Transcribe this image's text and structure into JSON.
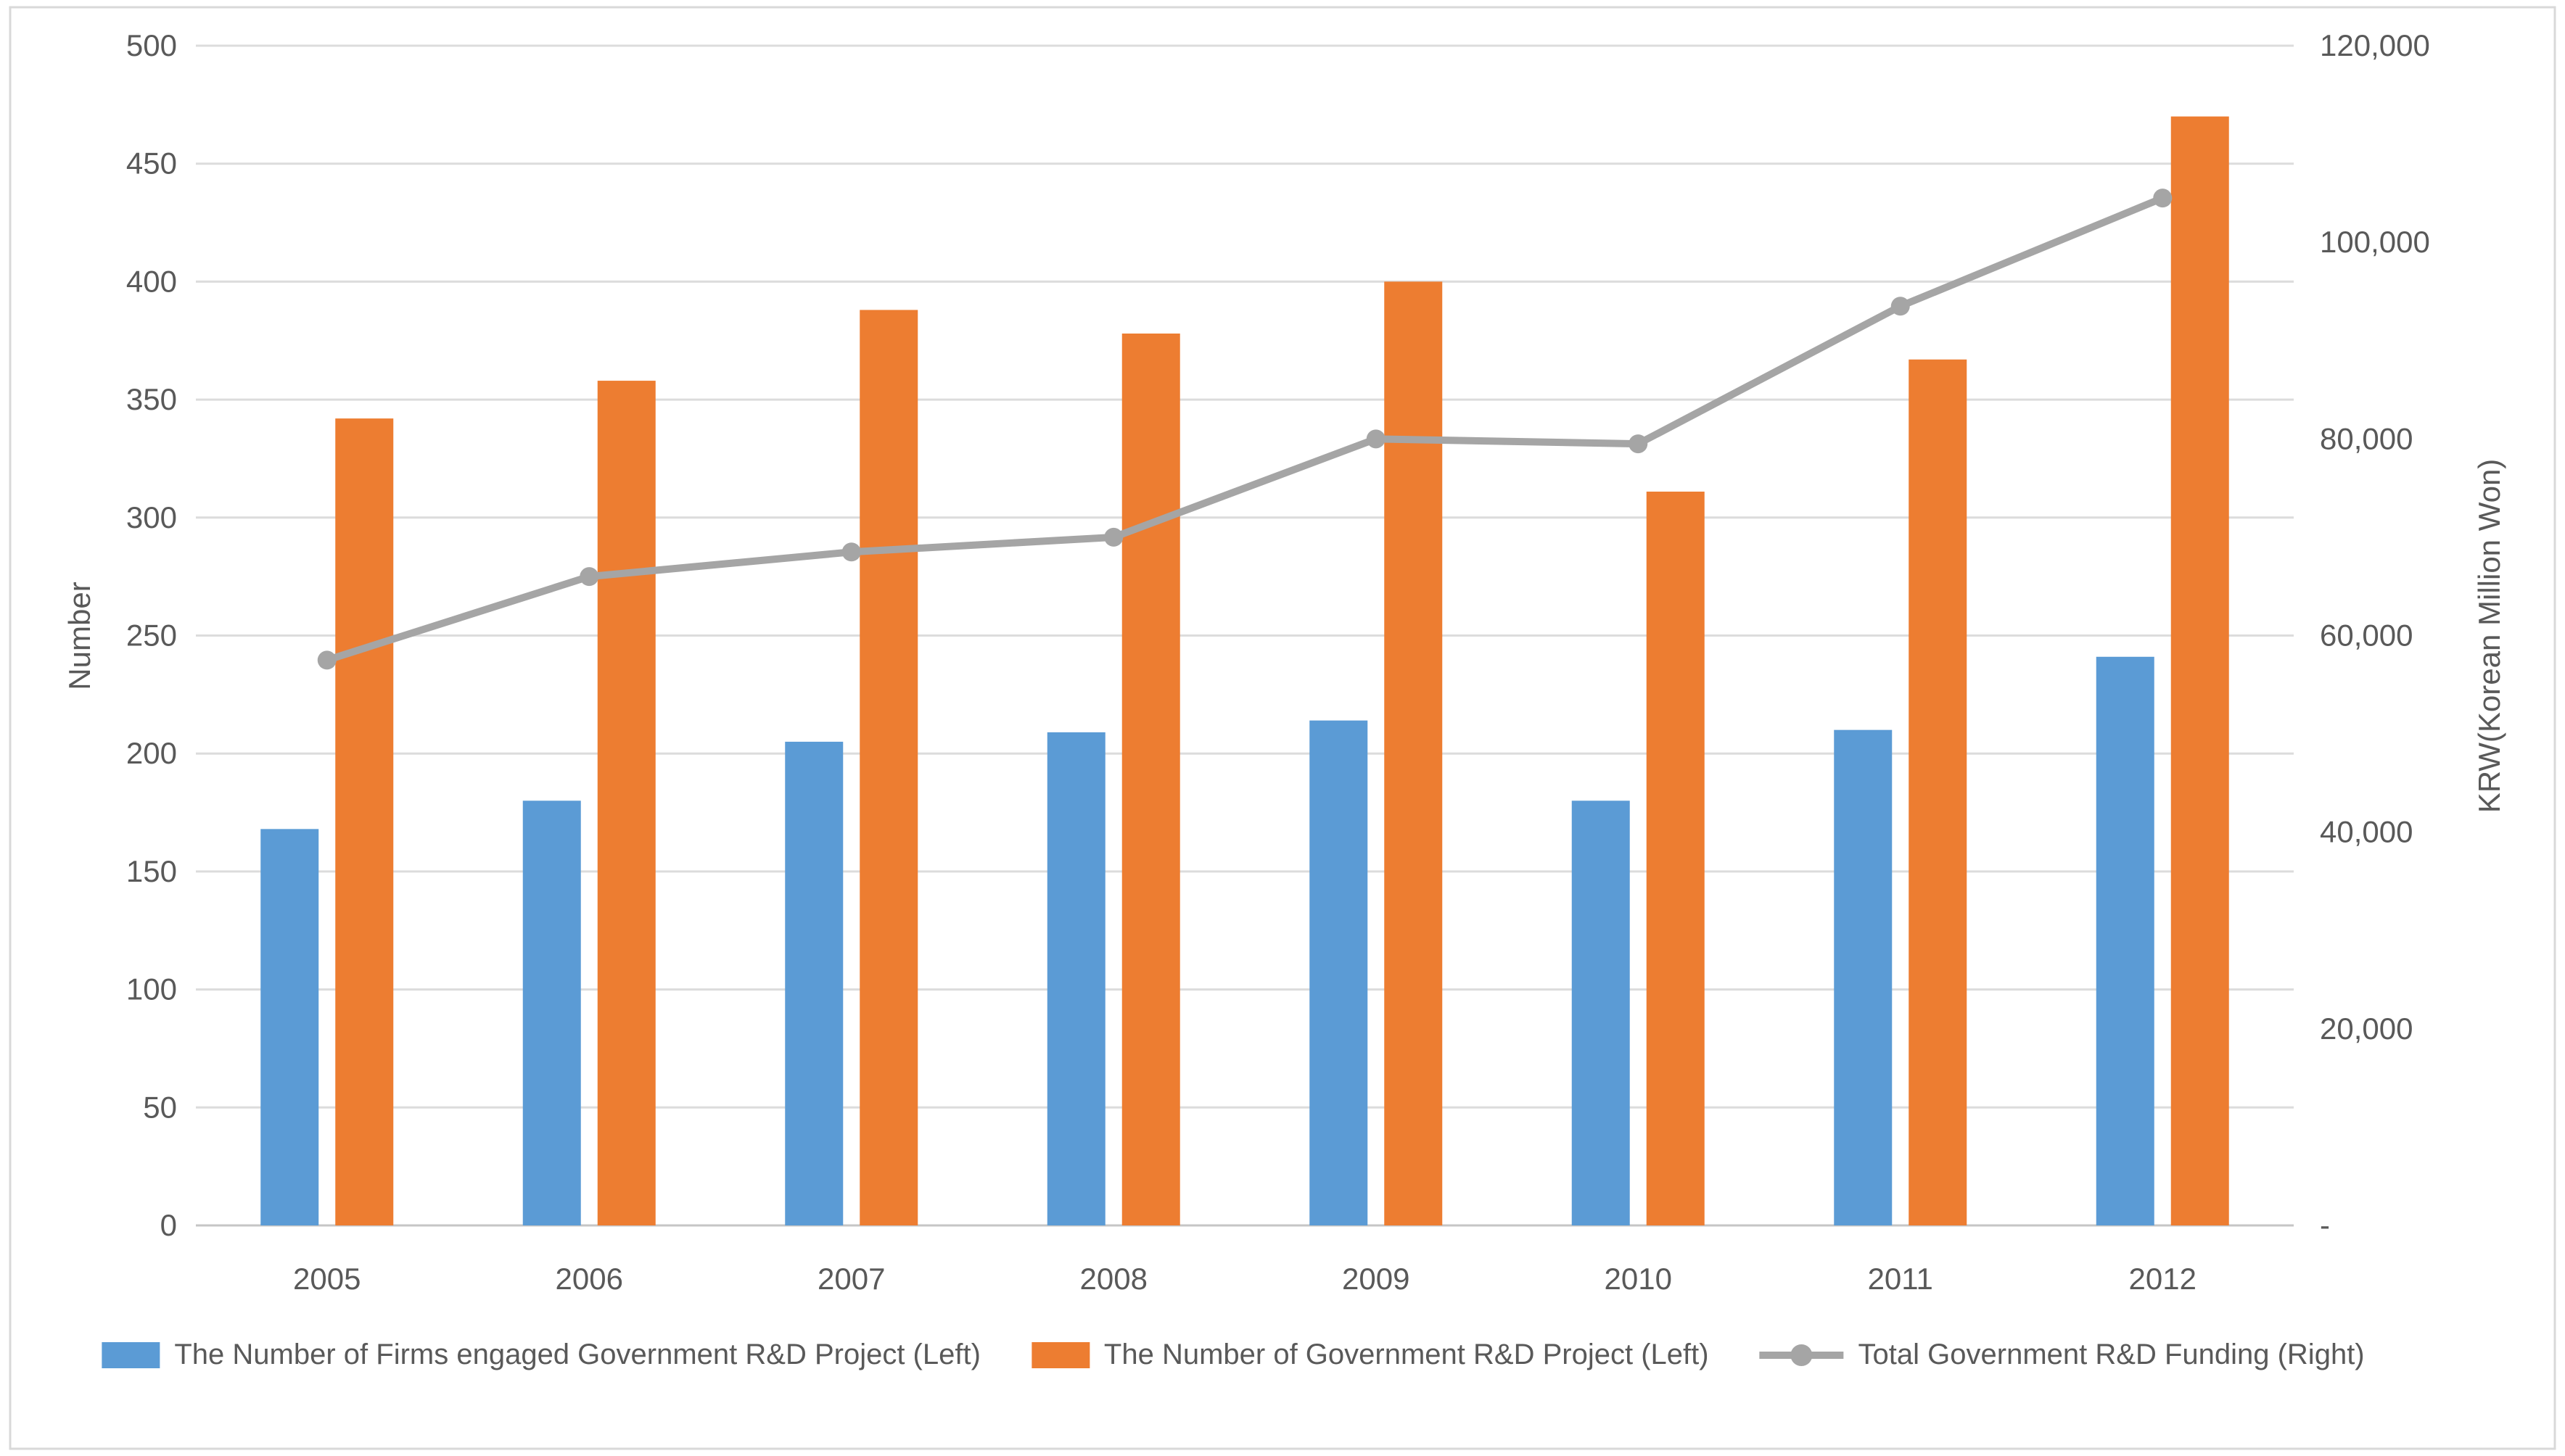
{
  "chart_data": {
    "type": "combo",
    "title": "",
    "categories": [
      "2005",
      "2006",
      "2007",
      "2008",
      "2009",
      "2010",
      "2011",
      "2012"
    ],
    "series": [
      {
        "name": "The Number of Firms engaged Government R&D Project (Left)",
        "type": "bar",
        "axis": "left",
        "color": "#5B9BD5",
        "values": [
          168,
          180,
          205,
          209,
          214,
          180,
          210,
          241
        ]
      },
      {
        "name": "The Number of Government R&D Project (Left)",
        "type": "bar",
        "axis": "left",
        "color": "#ED7D31",
        "values": [
          342,
          358,
          388,
          378,
          400,
          311,
          367,
          470
        ]
      },
      {
        "name": "Total Government R&D Funding (Right)",
        "type": "line",
        "axis": "right",
        "color": "#A5A5A5",
        "values": [
          57500,
          66000,
          68500,
          70000,
          80000,
          79500,
          93500,
          104500
        ]
      }
    ],
    "left_axis": {
      "title": "Number",
      "min": 0,
      "max": 500,
      "step": 50,
      "tick_labels": [
        "0",
        "50",
        "100",
        "150",
        "200",
        "250",
        "300",
        "350",
        "400",
        "450",
        "500"
      ]
    },
    "right_axis": {
      "title": "KRW(Korean Million Won)",
      "min": 0,
      "max": 120000,
      "step": 20000,
      "tick_labels": [
        "-",
        "20,000",
        "40,000",
        "60,000",
        "80,000",
        "100,000",
        "120,000"
      ]
    },
    "x_axis": {
      "tick_labels": [
        "2005",
        "2006",
        "2007",
        "2008",
        "2009",
        "2010",
        "2011",
        "2012"
      ]
    },
    "legend": {
      "position": "bottom"
    },
    "grid": "horizontal",
    "styles": {
      "grid_color": "#DCDCDC",
      "axis_line_color": "#C6C6C6",
      "text_color": "#595959",
      "background": "#FFFFFF",
      "border_color": "#D9D9D9"
    }
  }
}
